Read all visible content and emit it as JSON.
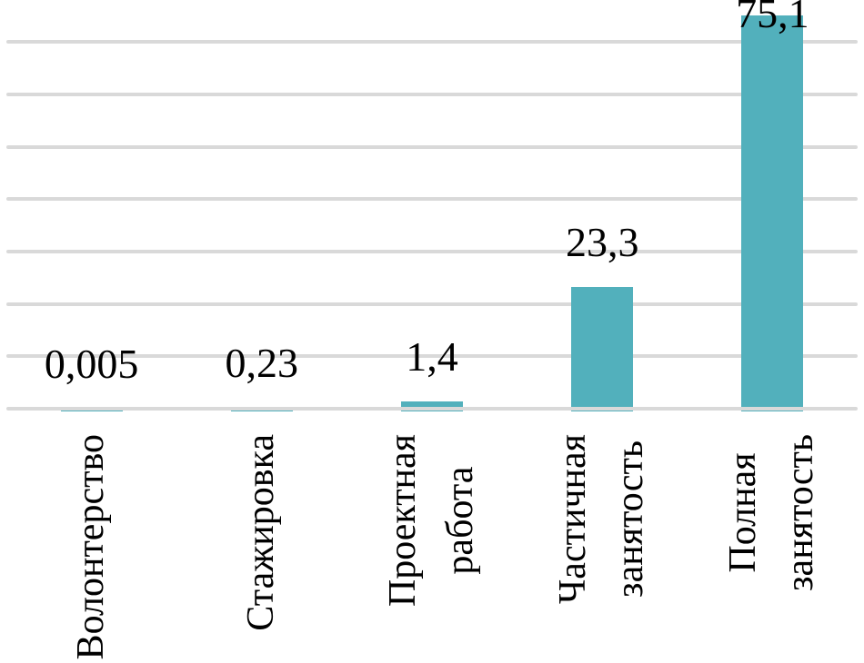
{
  "chart_data": {
    "type": "bar",
    "title": "",
    "xlabel": "",
    "ylabel": "",
    "categories": [
      "Волонтерство",
      "Стажировка",
      "Проектная работа",
      "Частичная занятость",
      "Полная занятость"
    ],
    "category_lines": [
      [
        "Волонтерство"
      ],
      [
        "Стажировка"
      ],
      [
        "Проектная",
        "работа"
      ],
      [
        "Частичная",
        "занятость"
      ],
      [
        "Полная",
        "занятость"
      ]
    ],
    "values": [
      0.005,
      0.23,
      1.4,
      23.3,
      75.1
    ],
    "value_labels": [
      "0,005",
      "0,23",
      "1,4",
      "23,3",
      "75,1"
    ],
    "ylim": [
      0,
      80
    ],
    "gridline_values": [
      10,
      20,
      30,
      40,
      50,
      60,
      70
    ],
    "grid": true,
    "legend": false,
    "axis_tick_labels_visible": false,
    "label_decimal_separator": ",",
    "colors": {
      "bar": "#52B0BC",
      "gridline": "#D9D9D9",
      "text": "#000000",
      "background": "#FFFFFF"
    }
  }
}
